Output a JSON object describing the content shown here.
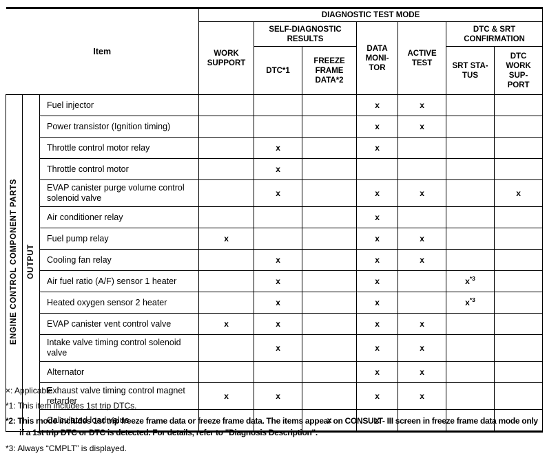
{
  "header": {
    "item_label": "Item",
    "diagnostic_test_mode": "DIAGNOSTIC TEST MODE",
    "columns": {
      "work_support": "WORK\nSUPPORT",
      "self_diagnostic_results": "SELF-DIAGNOSTIC\nRESULTS",
      "dtc": "DTC*1",
      "freeze_frame_data": "FREEZE\nFRAME\nDATA*2",
      "data_monitor": "DATA\nMONI-\nTOR",
      "active_test": "ACTIVE\nTEST",
      "dtc_srt_confirmation": "DTC & SRT\nCONFIRMATION",
      "srt_status": "SRT STA-\nTUS",
      "dtc_work_support": "DTC\nWORK\nSUP-\nPORT"
    }
  },
  "row_groups": {
    "category": "ENGINE CONTROL COMPONENT PARTS",
    "subcategory": "OUTPUT"
  },
  "rows": [
    {
      "item": "Fuel injector",
      "marks": [
        "",
        "",
        "",
        "x",
        "x",
        "",
        ""
      ]
    },
    {
      "item": "Power transistor (Ignition timing)",
      "marks": [
        "",
        "",
        "",
        "x",
        "x",
        "",
        ""
      ]
    },
    {
      "item": "Throttle control motor relay",
      "marks": [
        "",
        "x",
        "",
        "x",
        "",
        "",
        ""
      ]
    },
    {
      "item": "Throttle control motor",
      "marks": [
        "",
        "x",
        "",
        "",
        "",
        "",
        ""
      ]
    },
    {
      "item": "EVAP canister purge volume control solenoid valve",
      "marks": [
        "",
        "x",
        "",
        "x",
        "x",
        "",
        "x"
      ]
    },
    {
      "item": "Air conditioner relay",
      "marks": [
        "",
        "",
        "",
        "x",
        "",
        "",
        ""
      ]
    },
    {
      "item": "Fuel pump relay",
      "marks": [
        "x",
        "",
        "",
        "x",
        "x",
        "",
        ""
      ]
    },
    {
      "item": "Cooling fan relay",
      "marks": [
        "",
        "x",
        "",
        "x",
        "x",
        "",
        ""
      ]
    },
    {
      "item": "Air fuel ratio (A/F) sensor 1 heater",
      "marks": [
        "",
        "x",
        "",
        "x",
        "",
        "x*3",
        ""
      ]
    },
    {
      "item": "Heated oxygen sensor 2 heater",
      "marks": [
        "",
        "x",
        "",
        "x",
        "",
        "x*3",
        ""
      ]
    },
    {
      "item": "EVAP canister vent control valve",
      "marks": [
        "x",
        "x",
        "",
        "x",
        "x",
        "",
        ""
      ]
    },
    {
      "item": "Intake valve timing control solenoid valve",
      "marks": [
        "",
        "x",
        "",
        "x",
        "x",
        "",
        ""
      ]
    },
    {
      "item": "Alternator",
      "marks": [
        "",
        "",
        "",
        "x",
        "x",
        "",
        ""
      ]
    },
    {
      "item": "Exhaust valve timing control magnet retarder",
      "marks": [
        "x",
        "x",
        "",
        "x",
        "x",
        "",
        ""
      ]
    },
    {
      "item": "Calculated load value",
      "marks": [
        "",
        "",
        "x",
        "x",
        "",
        "",
        ""
      ]
    }
  ],
  "footnotes": [
    {
      "text": "×: Applicable",
      "bold": false
    },
    {
      "text": "*1: This item includes 1st trip DTCs.",
      "bold": false
    },
    {
      "text": "*2: This mode includes 1st trip freeze frame data or freeze frame data. The items appear on CONSULT- III screen in freeze frame data mode only if a 1st trip DTC or DTC is detected. For details, refer to \"Diagnosis Description\".",
      "bold": true
    },
    {
      "text": "*3: Always “CMPLT” is displayed.",
      "bold": false
    }
  ]
}
